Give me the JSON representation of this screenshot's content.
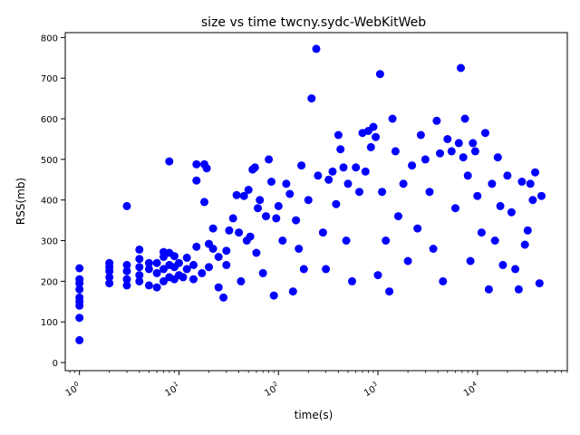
{
  "chart_data": {
    "type": "scatter",
    "title": "size vs time twcny.sydc-WebKitWeb",
    "xlabel": "time(s)",
    "ylabel": "RSS(mb)",
    "xscale": "log",
    "xlim": [
      0.72,
      80000
    ],
    "ylim": [
      -20,
      812
    ],
    "x_ticks": [
      {
        "value": 1,
        "base": "10",
        "exp": "0"
      },
      {
        "value": 10,
        "base": "10",
        "exp": "1"
      },
      {
        "value": 100,
        "base": "10",
        "exp": "2"
      },
      {
        "value": 1000,
        "base": "10",
        "exp": "3"
      },
      {
        "value": 10000,
        "base": "10",
        "exp": "4"
      }
    ],
    "y_ticks": [
      0,
      100,
      200,
      300,
      400,
      500,
      600,
      700,
      800
    ],
    "y_tick_labels": [
      "0",
      "100",
      "200",
      "300",
      "400",
      "500",
      "600",
      "700",
      "800"
    ],
    "grid": false,
    "legend": "none",
    "marker_color": "#0000ff",
    "series": [
      {
        "points": [
          [
            1,
            55
          ],
          [
            1,
            110
          ],
          [
            1,
            140
          ],
          [
            1,
            150
          ],
          [
            1,
            160
          ],
          [
            1,
            180
          ],
          [
            1,
            195
          ],
          [
            1,
            205
          ],
          [
            1,
            232
          ],
          [
            2,
            195
          ],
          [
            2,
            210
          ],
          [
            2,
            225
          ],
          [
            2,
            235
          ],
          [
            2,
            245
          ],
          [
            3,
            190
          ],
          [
            3,
            205
          ],
          [
            3,
            225
          ],
          [
            3,
            240
          ],
          [
            3,
            385
          ],
          [
            4,
            200
          ],
          [
            4,
            215
          ],
          [
            4,
            235
          ],
          [
            4,
            255
          ],
          [
            4,
            278
          ],
          [
            5,
            190
          ],
          [
            5,
            230
          ],
          [
            5,
            245
          ],
          [
            6,
            185
          ],
          [
            6,
            220
          ],
          [
            6,
            245
          ],
          [
            7,
            200
          ],
          [
            7,
            230
          ],
          [
            7,
            260
          ],
          [
            7,
            272
          ],
          [
            8,
            210
          ],
          [
            8,
            240
          ],
          [
            8,
            270
          ],
          [
            8,
            495
          ],
          [
            9,
            205
          ],
          [
            9,
            235
          ],
          [
            9,
            262
          ],
          [
            10,
            215
          ],
          [
            10,
            245
          ],
          [
            11,
            210
          ],
          [
            12,
            230
          ],
          [
            12,
            258
          ],
          [
            14,
            205
          ],
          [
            14,
            240
          ],
          [
            15,
            285
          ],
          [
            15,
            448
          ],
          [
            15,
            488
          ],
          [
            17,
            220
          ],
          [
            18,
            488
          ],
          [
            18,
            395
          ],
          [
            19,
            478
          ],
          [
            20,
            235
          ],
          [
            20,
            292
          ],
          [
            22,
            280
          ],
          [
            22,
            330
          ],
          [
            25,
            185
          ],
          [
            25,
            260
          ],
          [
            28,
            160
          ],
          [
            30,
            240
          ],
          [
            30,
            275
          ],
          [
            32,
            325
          ],
          [
            35,
            355
          ],
          [
            38,
            412
          ],
          [
            40,
            320
          ],
          [
            42,
            200
          ],
          [
            45,
            410
          ],
          [
            48,
            300
          ],
          [
            50,
            425
          ],
          [
            52,
            310
          ],
          [
            55,
            475
          ],
          [
            58,
            480
          ],
          [
            60,
            270
          ],
          [
            62,
            380
          ],
          [
            65,
            400
          ],
          [
            70,
            220
          ],
          [
            75,
            360
          ],
          [
            80,
            500
          ],
          [
            85,
            445
          ],
          [
            90,
            165
          ],
          [
            95,
            355
          ],
          [
            100,
            385
          ],
          [
            110,
            300
          ],
          [
            120,
            440
          ],
          [
            130,
            415
          ],
          [
            140,
            175
          ],
          [
            150,
            350
          ],
          [
            160,
            280
          ],
          [
            170,
            485
          ],
          [
            180,
            230
          ],
          [
            200,
            400
          ],
          [
            215,
            650
          ],
          [
            240,
            772
          ],
          [
            250,
            460
          ],
          [
            280,
            320
          ],
          [
            300,
            230
          ],
          [
            320,
            450
          ],
          [
            350,
            470
          ],
          [
            380,
            390
          ],
          [
            400,
            560
          ],
          [
            420,
            525
          ],
          [
            450,
            480
          ],
          [
            480,
            300
          ],
          [
            500,
            440
          ],
          [
            550,
            200
          ],
          [
            600,
            480
          ],
          [
            650,
            420
          ],
          [
            700,
            565
          ],
          [
            750,
            470
          ],
          [
            800,
            570
          ],
          [
            850,
            530
          ],
          [
            900,
            580
          ],
          [
            950,
            555
          ],
          [
            1000,
            215
          ],
          [
            1050,
            710
          ],
          [
            1100,
            420
          ],
          [
            1200,
            300
          ],
          [
            1300,
            175
          ],
          [
            1400,
            600
          ],
          [
            1500,
            520
          ],
          [
            1600,
            360
          ],
          [
            1800,
            440
          ],
          [
            2000,
            250
          ],
          [
            2200,
            485
          ],
          [
            2500,
            330
          ],
          [
            2700,
            560
          ],
          [
            3000,
            500
          ],
          [
            3300,
            420
          ],
          [
            3600,
            280
          ],
          [
            3900,
            595
          ],
          [
            4200,
            515
          ],
          [
            4500,
            200
          ],
          [
            5000,
            550
          ],
          [
            5500,
            520
          ],
          [
            6000,
            380
          ],
          [
            6500,
            540
          ],
          [
            6800,
            725
          ],
          [
            7200,
            505
          ],
          [
            7500,
            600
          ],
          [
            8000,
            460
          ],
          [
            8500,
            250
          ],
          [
            9000,
            540
          ],
          [
            9500,
            520
          ],
          [
            10000,
            410
          ],
          [
            11000,
            320
          ],
          [
            12000,
            565
          ],
          [
            13000,
            180
          ],
          [
            14000,
            440
          ],
          [
            15000,
            300
          ],
          [
            16000,
            505
          ],
          [
            17000,
            385
          ],
          [
            18000,
            240
          ],
          [
            20000,
            460
          ],
          [
            22000,
            370
          ],
          [
            24000,
            230
          ],
          [
            26000,
            180
          ],
          [
            28000,
            445
          ],
          [
            30000,
            290
          ],
          [
            32000,
            325
          ],
          [
            34000,
            440
          ],
          [
            36000,
            400
          ],
          [
            38000,
            468
          ],
          [
            42000,
            195
          ],
          [
            44000,
            410
          ]
        ]
      }
    ]
  }
}
